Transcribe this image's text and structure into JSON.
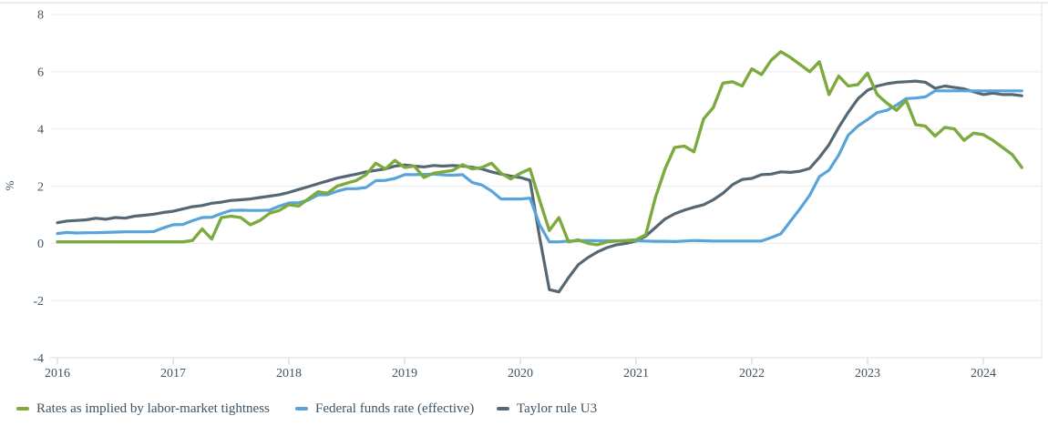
{
  "colors": {
    "background": "#ffffff",
    "grid": "#ededee",
    "axis_line": "#dde1e3",
    "tick": "#cfd5d8",
    "frame": "#e4e7e8",
    "text": "#3e5363",
    "series_green": "#7caa3e",
    "series_blue": "#56a4d9",
    "series_slate": "#566774"
  },
  "chart_data": {
    "type": "line",
    "title": "",
    "xlabel": "",
    "ylabel": "%",
    "grid": true,
    "legend_position": "bottom-left",
    "x_axis": {
      "tick_labels": [
        "2016",
        "2017",
        "2018",
        "2019",
        "2020",
        "2021",
        "2022",
        "2023",
        "2024"
      ],
      "start": "2016-01",
      "end": "2024-05",
      "frequency": "monthly"
    },
    "y_axis": {
      "label": "%",
      "tick_values": [
        8,
        6,
        4,
        2,
        0,
        -2,
        -4
      ],
      "range": [
        -4,
        8
      ]
    },
    "series": [
      {
        "name": "Rates as implied by labor-market tightness",
        "color": "#7caa3e",
        "values": [
          0.05,
          0.05,
          0.05,
          0.05,
          0.05,
          0.05,
          0.05,
          0.05,
          0.05,
          0.05,
          0.05,
          0.05,
          0.05,
          0.05,
          0.1,
          0.5,
          0.15,
          0.9,
          0.95,
          0.9,
          0.65,
          0.8,
          1.05,
          1.15,
          1.35,
          1.3,
          1.55,
          1.8,
          1.75,
          2.0,
          2.1,
          2.2,
          2.4,
          2.8,
          2.6,
          2.9,
          2.65,
          2.7,
          2.3,
          2.45,
          2.5,
          2.55,
          2.75,
          2.6,
          2.65,
          2.8,
          2.45,
          2.25,
          2.45,
          2.6,
          1.5,
          0.45,
          0.9,
          0.05,
          0.12,
          0.0,
          -0.05,
          0.05,
          0.08,
          0.1,
          0.12,
          0.3,
          1.6,
          2.6,
          3.35,
          3.4,
          3.2,
          4.35,
          4.75,
          5.6,
          5.65,
          5.5,
          6.1,
          5.9,
          6.4,
          6.7,
          6.5,
          6.25,
          6.0,
          6.35,
          5.2,
          5.85,
          5.5,
          5.55,
          5.95,
          5.2,
          4.9,
          4.65,
          5.0,
          4.15,
          4.1,
          3.75,
          4.05,
          4.0,
          3.6,
          3.85,
          3.8,
          3.6,
          3.35,
          3.1,
          2.65
        ]
      },
      {
        "name": "Federal funds rate (effective)",
        "color": "#56a4d9",
        "values": [
          0.34,
          0.38,
          0.36,
          0.37,
          0.37,
          0.38,
          0.39,
          0.4,
          0.4,
          0.4,
          0.41,
          0.54,
          0.65,
          0.66,
          0.79,
          0.9,
          0.91,
          1.04,
          1.15,
          1.16,
          1.15,
          1.15,
          1.16,
          1.3,
          1.41,
          1.42,
          1.51,
          1.69,
          1.7,
          1.82,
          1.91,
          1.91,
          1.95,
          2.19,
          2.2,
          2.27,
          2.4,
          2.4,
          2.41,
          2.42,
          2.39,
          2.38,
          2.4,
          2.13,
          2.04,
          1.83,
          1.55,
          1.55,
          1.55,
          1.58,
          0.65,
          0.05,
          0.05,
          0.08,
          0.09,
          0.1,
          0.09,
          0.09,
          0.09,
          0.09,
          0.09,
          0.08,
          0.07,
          0.07,
          0.06,
          0.08,
          0.1,
          0.09,
          0.08,
          0.08,
          0.08,
          0.08,
          0.08,
          0.08,
          0.2,
          0.33,
          0.77,
          1.21,
          1.68,
          2.33,
          2.56,
          3.08,
          3.78,
          4.1,
          4.33,
          4.57,
          4.65,
          4.83,
          5.06,
          5.08,
          5.12,
          5.33,
          5.33,
          5.33,
          5.33,
          5.33,
          5.33,
          5.33,
          5.33,
          5.33,
          5.33
        ]
      },
      {
        "name": "Taylor rule U3",
        "color": "#566774",
        "values": [
          0.72,
          0.78,
          0.8,
          0.82,
          0.88,
          0.84,
          0.9,
          0.88,
          0.95,
          0.98,
          1.02,
          1.08,
          1.12,
          1.2,
          1.28,
          1.32,
          1.4,
          1.44,
          1.5,
          1.52,
          1.55,
          1.6,
          1.65,
          1.7,
          1.78,
          1.88,
          1.98,
          2.08,
          2.18,
          2.28,
          2.35,
          2.42,
          2.5,
          2.55,
          2.6,
          2.7,
          2.74,
          2.7,
          2.67,
          2.72,
          2.7,
          2.72,
          2.7,
          2.66,
          2.6,
          2.5,
          2.42,
          2.35,
          2.3,
          2.2,
          0.2,
          -1.62,
          -1.7,
          -1.2,
          -0.75,
          -0.5,
          -0.3,
          -0.15,
          -0.05,
          0.0,
          0.08,
          0.25,
          0.55,
          0.85,
          1.03,
          1.16,
          1.26,
          1.35,
          1.52,
          1.75,
          2.05,
          2.23,
          2.27,
          2.4,
          2.42,
          2.5,
          2.48,
          2.52,
          2.62,
          3.0,
          3.45,
          4.05,
          4.58,
          5.05,
          5.35,
          5.5,
          5.58,
          5.63,
          5.65,
          5.67,
          5.63,
          5.42,
          5.5,
          5.45,
          5.4,
          5.3,
          5.2,
          5.25,
          5.2,
          5.2,
          5.16
        ]
      }
    ]
  },
  "legend": {
    "items": [
      {
        "label": "Rates as implied by labor-market tightness"
      },
      {
        "label": "Federal funds rate (effective)"
      },
      {
        "label": "Taylor rule U3"
      }
    ]
  }
}
